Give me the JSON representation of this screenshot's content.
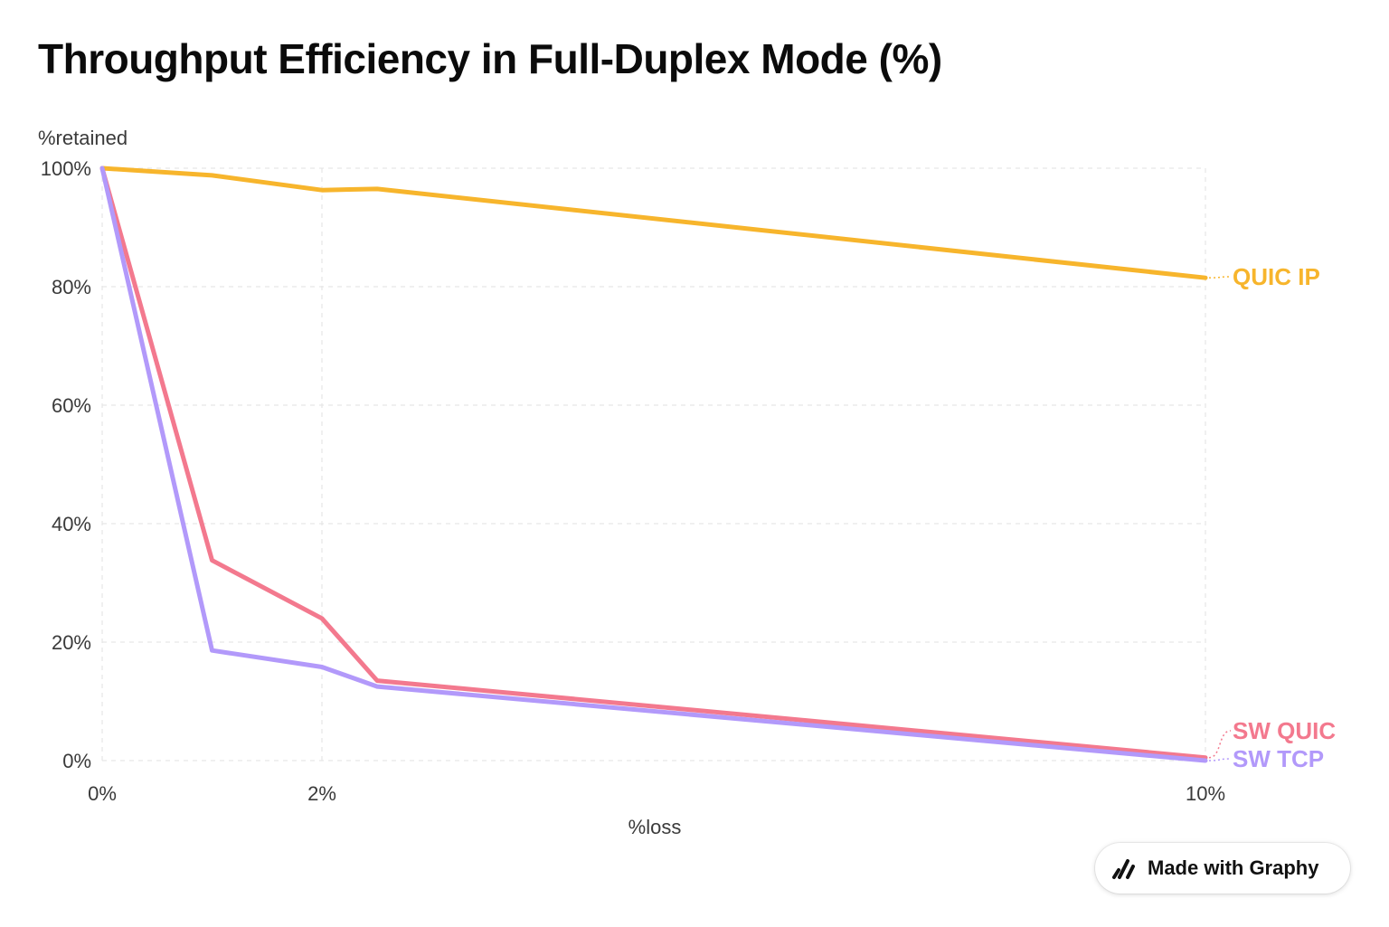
{
  "title": "Throughput Efficiency in Full-Duplex Mode (%)",
  "badge": {
    "label": "Made with Graphy",
    "icon": "graphy-logo-icon"
  },
  "chart_data": {
    "type": "line",
    "title": "Throughput Efficiency in Full-Duplex Mode (%)",
    "xlabel": "%loss",
    "ylabel": "%retained",
    "xlim": [
      0,
      10
    ],
    "ylim": [
      0,
      100
    ],
    "x_ticks": [
      {
        "value": 0,
        "label": "0%"
      },
      {
        "value": 2,
        "label": "2%"
      },
      {
        "value": 10,
        "label": "10%"
      }
    ],
    "y_ticks": [
      {
        "value": 0,
        "label": "0%"
      },
      {
        "value": 20,
        "label": "20%"
      },
      {
        "value": 40,
        "label": "40%"
      },
      {
        "value": 60,
        "label": "60%"
      },
      {
        "value": 80,
        "label": "80%"
      },
      {
        "value": 100,
        "label": "100%"
      }
    ],
    "grid": true,
    "legend": "labels at line ends (right)",
    "series": [
      {
        "name": "QUIC IP",
        "color": "#F7B52C",
        "x": [
          0,
          1,
          2,
          2.5,
          10
        ],
        "y": [
          100,
          98.8,
          96.3,
          96.5,
          81.5
        ]
      },
      {
        "name": "SW QUIC",
        "color": "#F3798E",
        "x": [
          0,
          1,
          2,
          2.5,
          10
        ],
        "y": [
          100,
          33.8,
          24,
          13.5,
          0.5
        ]
      },
      {
        "name": "SW TCP",
        "color": "#B299FA",
        "x": [
          0,
          1,
          2,
          2.5,
          10
        ],
        "y": [
          100,
          18.6,
          15.8,
          12.5,
          0
        ]
      }
    ]
  }
}
